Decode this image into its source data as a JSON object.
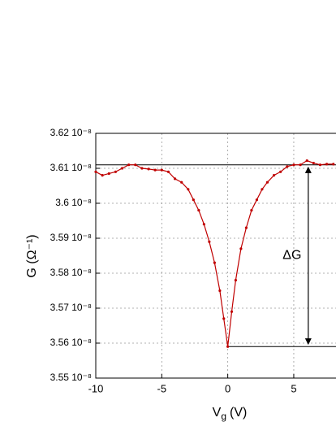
{
  "chart_data": {
    "type": "line",
    "y_label": "G (Ω⁻¹)",
    "x_label": {
      "main": "V",
      "sub": "g",
      "unit": "(V)"
    },
    "x": [
      -10,
      -9.5,
      -9,
      -8.5,
      -8,
      -7.5,
      -7,
      -6.5,
      -6,
      -5.5,
      -5,
      -4.5,
      -4,
      -3.5,
      -3,
      -2.6,
      -2.2,
      -1.8,
      -1.4,
      -1.0,
      -0.6,
      -0.3,
      0,
      0.3,
      0.6,
      1.0,
      1.4,
      1.8,
      2.2,
      2.6,
      3.0,
      3.5,
      4.0,
      4.5,
      5,
      5.5,
      6,
      6.5,
      7,
      7.5,
      8
    ],
    "series": [
      {
        "color": "#c00000",
        "values": [
          3.609e-08,
          3.608e-08,
          3.6085e-08,
          3.609e-08,
          3.61e-08,
          3.611e-08,
          3.611e-08,
          3.61e-08,
          3.6098e-08,
          3.6095e-08,
          3.6095e-08,
          3.609e-08,
          3.607e-08,
          3.606e-08,
          3.604e-08,
          3.601e-08,
          3.598e-08,
          3.594e-08,
          3.589e-08,
          3.583e-08,
          3.575e-08,
          3.567e-08,
          3.559e-08,
          3.569e-08,
          3.578e-08,
          3.587e-08,
          3.593e-08,
          3.598e-08,
          3.601e-08,
          3.604e-08,
          3.606e-08,
          3.608e-08,
          3.609e-08,
          3.6105e-08,
          3.611e-08,
          3.611e-08,
          3.6122e-08,
          3.6115e-08,
          3.611e-08,
          3.6112e-08,
          3.6112e-08
        ]
      }
    ],
    "xlim": [
      -10,
      8.2
    ],
    "xticks": [
      -10,
      -5,
      0,
      5
    ],
    "ylim": [
      3.55e-08,
      3.62e-08
    ],
    "yticks": [
      {
        "value": 3.55e-08,
        "label": "3.55 10⁻⁸"
      },
      {
        "value": 3.56e-08,
        "label": "3.56 10⁻⁸"
      },
      {
        "value": 3.57e-08,
        "label": "3.57 10⁻⁸"
      },
      {
        "value": 3.58e-08,
        "label": "3.58 10⁻⁸"
      },
      {
        "value": 3.59e-08,
        "label": "3.59 10⁻⁸"
      },
      {
        "value": 3.6e-08,
        "label": "3.6 10⁻⁸"
      },
      {
        "value": 3.61e-08,
        "label": "3.61 10⁻⁸"
      },
      {
        "value": 3.62e-08,
        "label": "3.62 10⁻⁸"
      }
    ],
    "grid": true,
    "reference_lines": [
      {
        "y": 3.611e-08,
        "x_from": -10
      },
      {
        "y": 3.559e-08,
        "x_from": 0
      }
    ],
    "annotation": {
      "text": "ΔG",
      "x": 6.1,
      "y_from": 3.5595e-08,
      "y_to": 3.6105e-08
    }
  }
}
